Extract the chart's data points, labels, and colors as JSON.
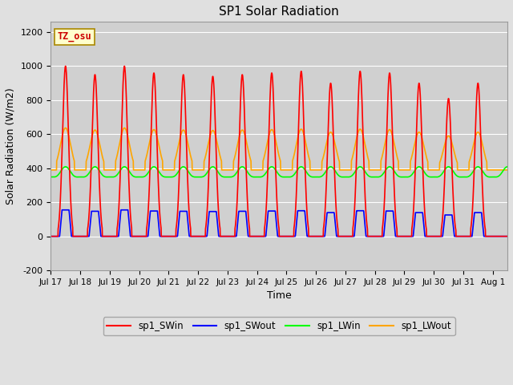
{
  "title": "SP1 Solar Radiation",
  "xlabel": "Time",
  "ylabel": "Solar Radiation (W/m2)",
  "ylim": [
    -200,
    1260
  ],
  "yticks": [
    -200,
    0,
    200,
    400,
    600,
    800,
    1000,
    1200
  ],
  "fig_bg_color": "#e0e0e0",
  "plot_bg_color": "#d0d0d0",
  "grid_color": "white",
  "tz_label": "TZ_osu",
  "colors": {
    "SWin": "#ff0000",
    "SWout": "#0000ff",
    "LWin": "#00ff00",
    "LWout": "#ffa500"
  },
  "legend_labels": [
    "sp1_SWin",
    "sp1_SWout",
    "sp1_LWin",
    "sp1_LWout"
  ],
  "x_tick_labels": [
    "Jul 17",
    "Jul 18",
    "Jul 19",
    "Jul 20",
    "Jul 21",
    "Jul 22",
    "Jul 23",
    "Jul 24",
    "Jul 25",
    "Jul 26",
    "Jul 27",
    "Jul 28",
    "Jul 29",
    "Jul 30",
    "Jul 31",
    "Aug 1"
  ],
  "SWin_peaks": [
    1000,
    950,
    1000,
    960,
    950,
    940,
    950,
    960,
    970,
    900,
    970,
    960,
    900,
    810,
    900,
    0
  ],
  "n_days": 15.5,
  "samples_per_day": 144
}
